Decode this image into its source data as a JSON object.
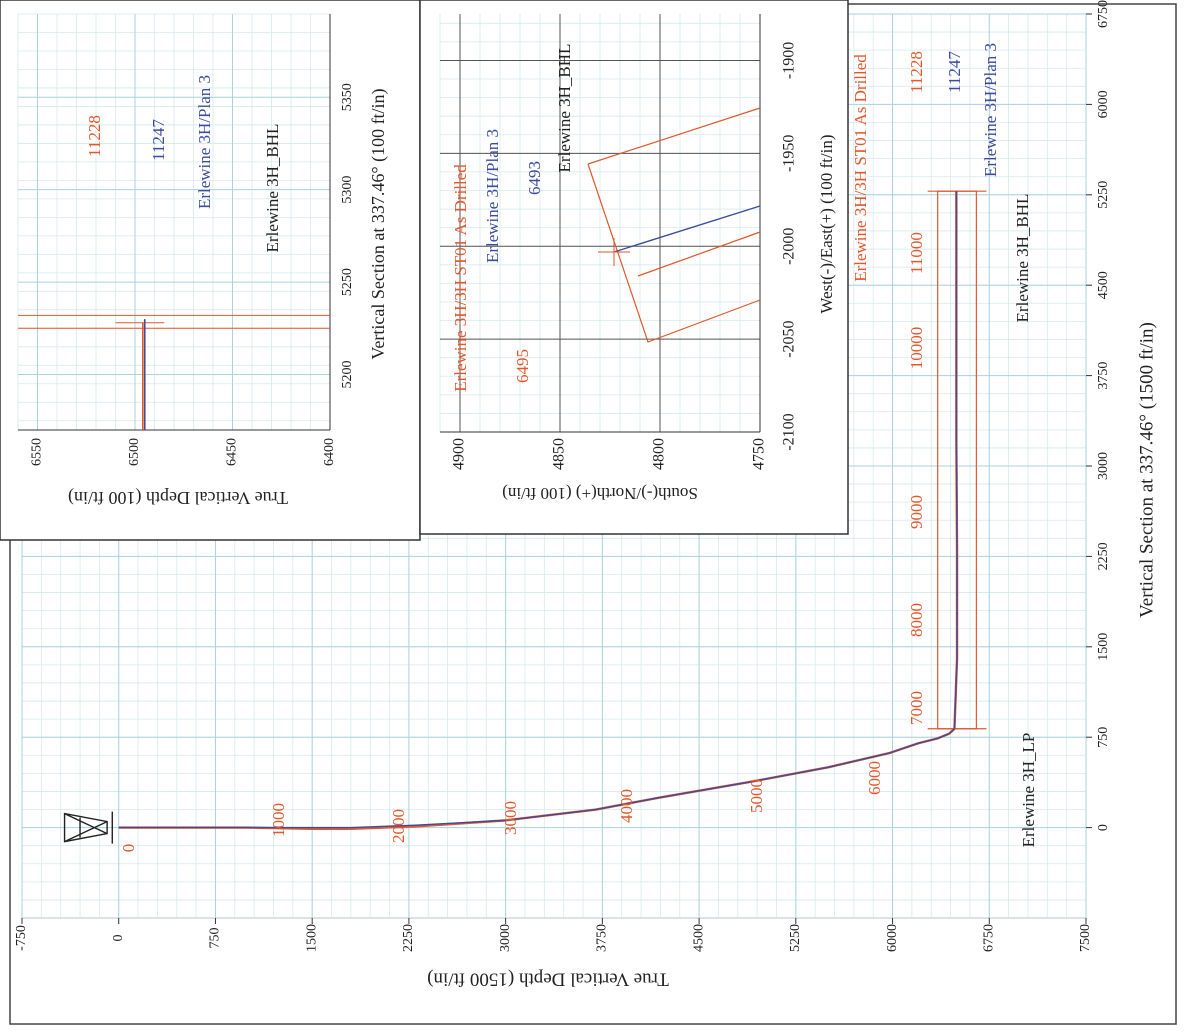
{
  "chart_data": [
    {
      "type": "line",
      "panel": "main vertical section",
      "xlabel": "Vertical Section at 337.46° (1500 ft/in)",
      "ylabel": "True Vertical Depth (1500 ft/in)",
      "xlim": [
        -750,
        6750
      ],
      "ylim": [
        -750,
        7500
      ],
      "x_ticks": [
        "0",
        "750",
        "1500",
        "2250",
        "3000",
        "3750",
        "4500",
        "5250",
        "6000",
        "6750"
      ],
      "y_ticks": [
        "-750",
        "0",
        "750",
        "1500",
        "2250",
        "3000",
        "3750",
        "4500",
        "5250",
        "6000",
        "6750",
        "7500"
      ],
      "grid": true,
      "series": [
        {
          "name": "Erlewine 3H/3H ST01 As Drilled",
          "color": "#e2572b",
          "x": [
            0,
            0,
            -10,
            -10,
            10,
            60,
            150,
            250,
            380,
            500,
            620,
            700,
            740,
            780,
            820,
            1400,
            2300,
            3200,
            4100,
            5000,
            5280
          ],
          "y": [
            0,
            1000,
            1500,
            1800,
            2300,
            3000,
            3700,
            4200,
            4900,
            5500,
            5980,
            6200,
            6350,
            6440,
            6480,
            6500,
            6500,
            6495,
            6495,
            6495,
            6495
          ]
        },
        {
          "name": "Erlewine 3H/Plan 3",
          "color": "#3b4ba0",
          "x": [
            0,
            0,
            0,
            0,
            20,
            60,
            150,
            250,
            380,
            500,
            620,
            700,
            740,
            780,
            820,
            1400,
            2300,
            3200,
            4100,
            5000,
            5280
          ],
          "y": [
            0,
            1000,
            1500,
            1800,
            2300,
            3000,
            3700,
            4200,
            4900,
            5500,
            5980,
            6200,
            6350,
            6440,
            6480,
            6500,
            6500,
            6495,
            6495,
            6495,
            6495
          ]
        }
      ],
      "annotations": {
        "md_labels": [
          "0",
          "1000",
          "2000",
          "3000",
          "4000",
          "5000",
          "6000",
          "7000",
          "8000",
          "9000",
          "10000",
          "11000",
          "11228"
        ],
        "plan_md": "11247",
        "targets": [
          "Erlewine 3H_LP",
          "Erlewine 3H_BHL"
        ],
        "legend": [
          "Erlewine 3H/3H ST01 As Drilled",
          "Erlewine 3H/Plan 3",
          "Erlewine 3H_BHL"
        ]
      }
    },
    {
      "type": "line",
      "panel": "vertical section zoom",
      "xlabel": "Vertical Section at 337.46° (100 ft/in)",
      "ylabel": "True Vertical Depth (100 ft/in)",
      "xlim": [
        5170,
        5395
      ],
      "ylim": [
        6400,
        6560
      ],
      "x_ticks": [
        "5200",
        "5250",
        "5300",
        "5350"
      ],
      "y_ticks": [
        "6550",
        "6500",
        "6450",
        "6400"
      ],
      "grid": true,
      "series": [
        {
          "name": "Erlewine 3H/3H ST01 As Drilled",
          "color": "#e2572b",
          "x": [
            5170,
            5228
          ],
          "y": [
            6496,
            6496
          ]
        },
        {
          "name": "Erlewine 3H/Plan 3",
          "color": "#3b4ba0",
          "x": [
            5170,
            5230
          ],
          "y": [
            6495,
            6495
          ]
        }
      ],
      "annotations": {
        "labels": [
          "11228",
          "11247",
          "Erlewine 3H/Plan 3",
          "Erlewine 3H_BHL"
        ]
      }
    },
    {
      "type": "line",
      "panel": "plan view zoom",
      "xlabel": "West(-)/East(+) (100 ft/in)",
      "ylabel": "South(-)/North(+) (100 ft/in)",
      "xlim": [
        -2100,
        -1875
      ],
      "ylim": [
        4750,
        4910
      ],
      "x_ticks": [
        "-2100",
        "-2050",
        "-2000",
        "-1950",
        "-1900"
      ],
      "y_ticks": [
        "4900",
        "4850",
        "4800",
        "4750"
      ],
      "grid": true,
      "series": [
        {
          "name": "Erlewine 3H/3H ST01 As Drilled",
          "color": "#e2572b",
          "x": [
            -2020,
            -1995
          ],
          "y": [
            4752,
            4812
          ]
        },
        {
          "name": "Erlewine 3H/Plan 3",
          "color": "#3b4ba0",
          "x": [
            -1985,
            -2005
          ],
          "y": [
            4752,
            4828
          ]
        }
      ],
      "annotations": {
        "labels": [
          "Erlewine 3H/3H ST01 As Drilled",
          "Erlewine 3H/Plan 3",
          "Erlewine 3H_BHL",
          "6495",
          "6493"
        ]
      }
    }
  ]
}
